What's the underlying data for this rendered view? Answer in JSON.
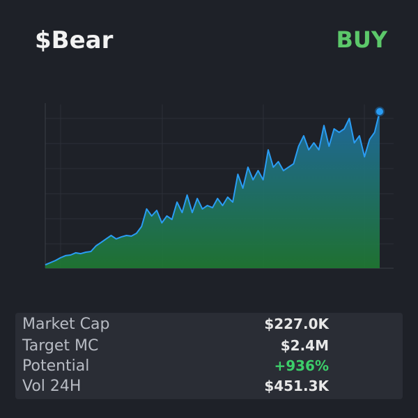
{
  "header": {
    "title": "$Bear",
    "action": "BUY"
  },
  "chart_data": {
    "type": "area",
    "color": "#2a9df4",
    "ylim": [
      0,
      100
    ],
    "values": [
      2.1,
      3.4,
      4.7,
      6.4,
      7.7,
      8.1,
      9.4,
      8.9,
      9.8,
      10.2,
      13.6,
      15.7,
      17.9,
      20,
      17.9,
      19.1,
      20,
      19.6,
      21.3,
      25.5,
      36.2,
      31.9,
      35.3,
      27.7,
      31.9,
      29.8,
      40.4,
      34,
      44.7,
      34,
      42.6,
      36.2,
      38.3,
      37,
      42.6,
      38.3,
      43.4,
      40.4,
      57.4,
      48.9,
      61.7,
      54,
      59.6,
      54,
      72.3,
      61.7,
      65.1,
      59.6,
      61.7,
      63.8,
      74.5,
      80.9,
      72.3,
      76.6,
      72.3,
      87.2,
      74.5,
      85.1,
      83,
      85.1,
      91.5,
      76.6,
      80.9,
      68.1,
      78.7,
      83,
      95.7
    ]
  },
  "stats": [
    {
      "label": "Market Cap",
      "value": "$227.0K"
    },
    {
      "label": "Target MC",
      "value": "$2.4M"
    },
    {
      "label": "Potential",
      "value": "+936%"
    },
    {
      "label": "Vol 24H",
      "value": "$451.3K"
    }
  ]
}
